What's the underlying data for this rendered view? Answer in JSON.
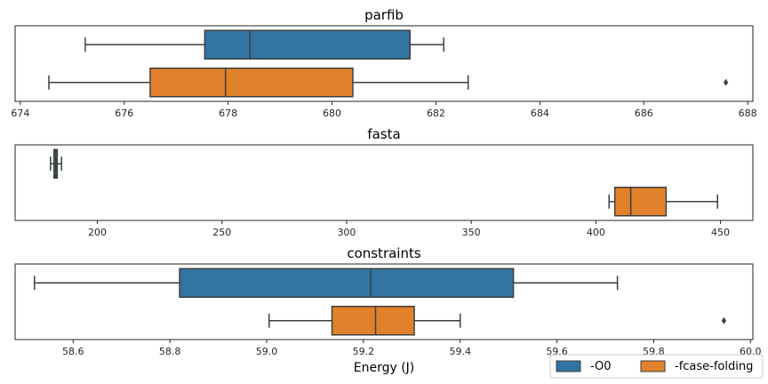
{
  "chart_data": [
    {
      "type": "box",
      "title": "parfib",
      "orientation": "horizontal",
      "xlim": [
        673.9,
        688.1
      ],
      "xticks": [
        674,
        676,
        678,
        680,
        682,
        684,
        686,
        688
      ],
      "xlabel": "",
      "series": [
        {
          "name": "-O0",
          "whislo": 675.25,
          "q1": 677.55,
          "med": 678.42,
          "q3": 681.5,
          "whishi": 682.15,
          "fliers": []
        },
        {
          "name": "-fcase-folding",
          "whislo": 674.55,
          "q1": 676.5,
          "med": 677.95,
          "q3": 680.4,
          "whishi": 682.62,
          "fliers": [
            687.58
          ]
        }
      ]
    },
    {
      "type": "box",
      "title": "fasta",
      "orientation": "horizontal",
      "xlim": [
        167,
        463
      ],
      "xticks": [
        200,
        250,
        300,
        350,
        400,
        450
      ],
      "xlabel": "",
      "series": [
        {
          "name": "-O0",
          "whislo": 181.2,
          "q1": 182.6,
          "med": 183.3,
          "q3": 183.9,
          "whishi": 185.6,
          "fliers": []
        },
        {
          "name": "-fcase-folding",
          "whislo": 405.3,
          "q1": 407.6,
          "med": 414.0,
          "q3": 428.2,
          "whishi": 448.8,
          "fliers": []
        }
      ]
    },
    {
      "type": "box",
      "title": "constraints",
      "orientation": "horizontal",
      "xlim": [
        58.48,
        60.005
      ],
      "xticks": [
        58.6,
        58.8,
        59.0,
        59.2,
        59.4,
        59.6,
        59.8,
        60.0
      ],
      "xlabel": "Energy (J)",
      "series": [
        {
          "name": "-O0",
          "whislo": 58.52,
          "q1": 58.82,
          "med": 59.215,
          "q3": 59.51,
          "whishi": 59.725,
          "fliers": []
        },
        {
          "name": "-fcase-folding",
          "whislo": 59.005,
          "q1": 59.135,
          "med": 59.225,
          "q3": 59.305,
          "whishi": 59.4,
          "fliers": [
            59.945
          ]
        }
      ]
    }
  ],
  "legend": {
    "placement": "bottom-right",
    "entries": [
      {
        "label": "-O0",
        "color": "#3274a1"
      },
      {
        "label": "-fcase-folding",
        "color": "#e1812c"
      }
    ]
  }
}
